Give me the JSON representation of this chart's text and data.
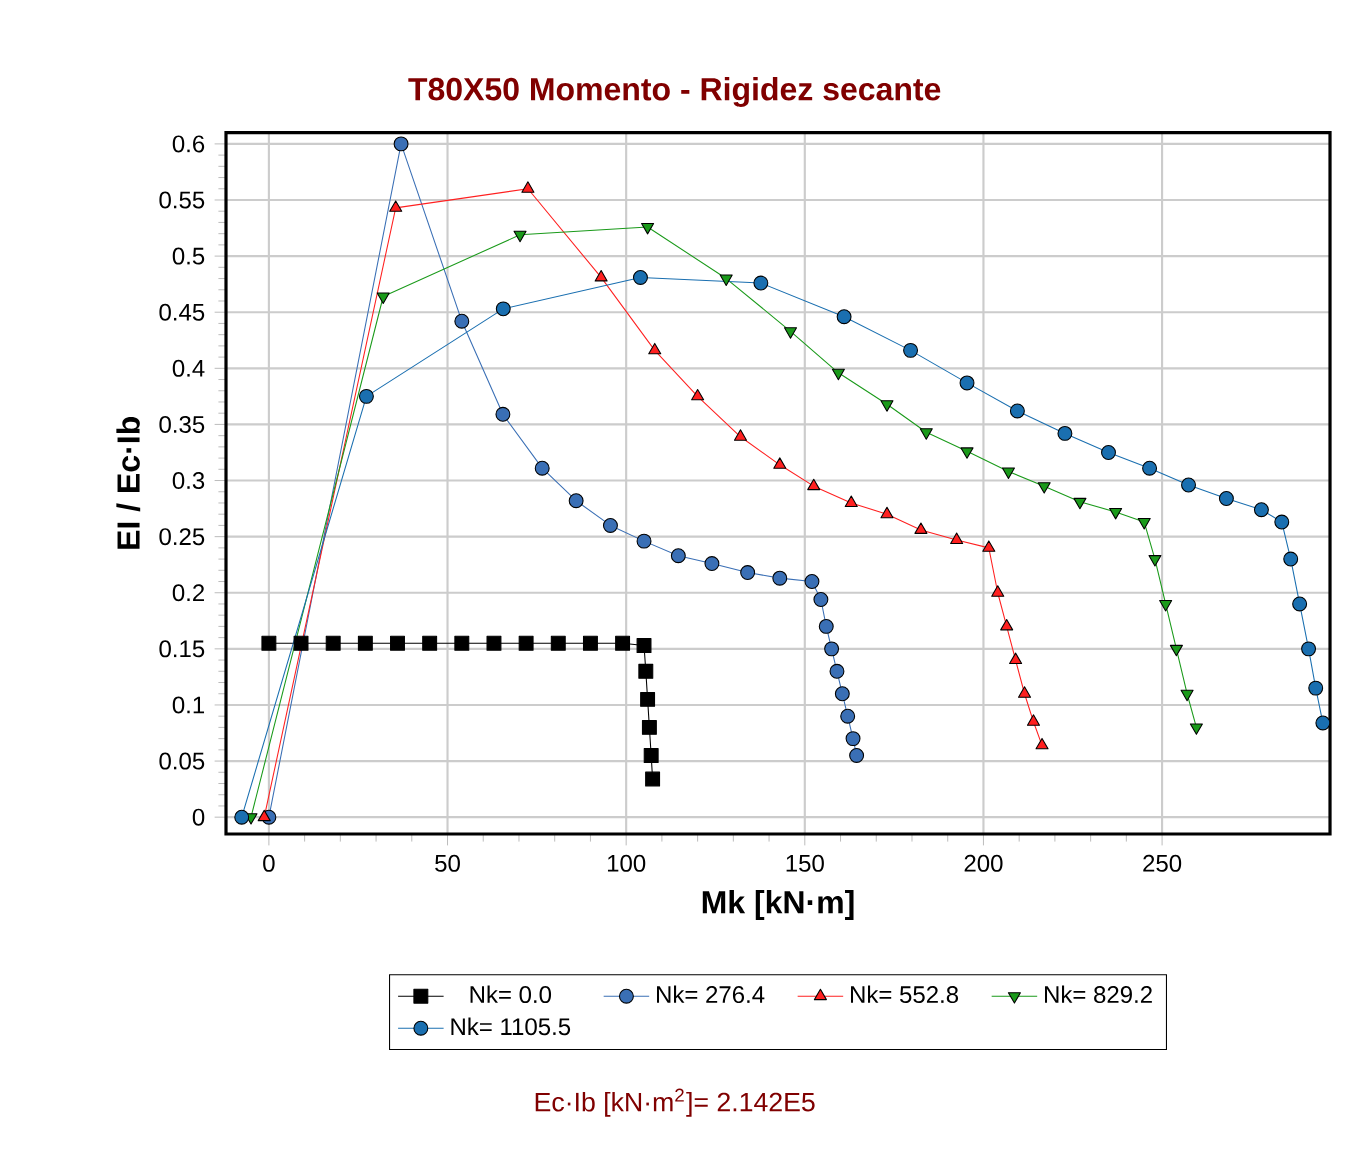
{
  "chart_data": {
    "type": "line",
    "title": "T80X50 Momento - Rigidez secante",
    "xlabel": "Mk [kN·m]",
    "ylabel": "EI / Ec·Ib",
    "annotations": [
      "Ec·Ib  [kN·m$^{2}$]= 2.142E5"
    ],
    "xlim": [
      -12,
      297
    ],
    "ylim": [
      -0.015,
      0.61
    ],
    "xticks": [
      0,
      50,
      100,
      150,
      200,
      250
    ],
    "yticks": [
      0,
      0.05,
      0.1,
      0.15,
      0.2,
      0.25,
      0.3,
      0.35,
      0.4,
      0.45,
      0.5,
      0.55,
      0.6
    ],
    "grid": true,
    "legend": "bottom",
    "line_style": "solid",
    "series": [
      {
        "name": "Nk= 0.0",
        "color": "#000000",
        "marker": "square",
        "x": [
          0,
          9,
          18,
          27,
          36,
          45,
          54,
          63,
          72,
          81,
          90,
          99,
          105,
          105.5,
          106,
          106.5,
          107,
          107.4
        ],
        "values": [
          0.155,
          0.155,
          0.155,
          0.155,
          0.155,
          0.155,
          0.155,
          0.155,
          0.155,
          0.155,
          0.155,
          0.155,
          0.153,
          0.13,
          0.105,
          0.08,
          0.055,
          0.034
        ]
      },
      {
        "name": "Nk= 276.4",
        "color": "#3a6fb5",
        "marker": "circle",
        "x": [
          0,
          37,
          54,
          65.5,
          76.5,
          86,
          95.6,
          105,
          114.6,
          124,
          134,
          143,
          152,
          154.5,
          156,
          157.5,
          159,
          160.5,
          162,
          163.5,
          164.5
        ],
        "values": [
          0,
          0.6,
          0.442,
          0.359,
          0.311,
          0.282,
          0.26,
          0.246,
          0.233,
          0.226,
          0.218,
          0.213,
          0.21,
          0.194,
          0.17,
          0.15,
          0.13,
          0.11,
          0.09,
          0.07,
          0.055
        ]
      },
      {
        "name": "Nk= 552.8",
        "color": "#ff2020",
        "marker": "triangle",
        "x": [
          -1.3,
          35.5,
          72.5,
          93,
          108,
          120,
          132,
          143,
          152.5,
          163,
          173,
          182.5,
          192.5,
          201.5,
          204,
          206.5,
          209,
          211.5,
          214,
          216.4
        ],
        "values": [
          0,
          0.543,
          0.56,
          0.481,
          0.416,
          0.375,
          0.339,
          0.314,
          0.295,
          0.28,
          0.27,
          0.256,
          0.247,
          0.24,
          0.2,
          0.17,
          0.14,
          0.11,
          0.085,
          0.064
        ]
      },
      {
        "name": "Nk= 829.2",
        "color": "#1a9a1a",
        "marker": "triangle-down",
        "x": [
          -5,
          32,
          70.3,
          106,
          128,
          146,
          159.4,
          173,
          184,
          195.4,
          207,
          217,
          227,
          237,
          245,
          248,
          251,
          254,
          257,
          259.6
        ],
        "values": [
          0,
          0.464,
          0.519,
          0.526,
          0.48,
          0.433,
          0.396,
          0.368,
          0.343,
          0.326,
          0.308,
          0.295,
          0.281,
          0.272,
          0.263,
          0.23,
          0.19,
          0.15,
          0.11,
          0.08
        ]
      },
      {
        "name": "Nk= 1105.5",
        "color": "#1a6fb0",
        "marker": "circle",
        "x": [
          -7.6,
          27.3,
          65.6,
          104,
          137.7,
          161,
          179.6,
          195.4,
          209.5,
          222.8,
          235,
          246.5,
          257.4,
          268,
          277.8,
          283.5,
          286,
          288.5,
          291,
          293,
          295
        ],
        "values": [
          0,
          0.375,
          0.453,
          0.481,
          0.476,
          0.446,
          0.416,
          0.387,
          0.362,
          0.342,
          0.325,
          0.311,
          0.296,
          0.284,
          0.274,
          0.263,
          0.23,
          0.19,
          0.15,
          0.115,
          0.084
        ]
      }
    ]
  }
}
